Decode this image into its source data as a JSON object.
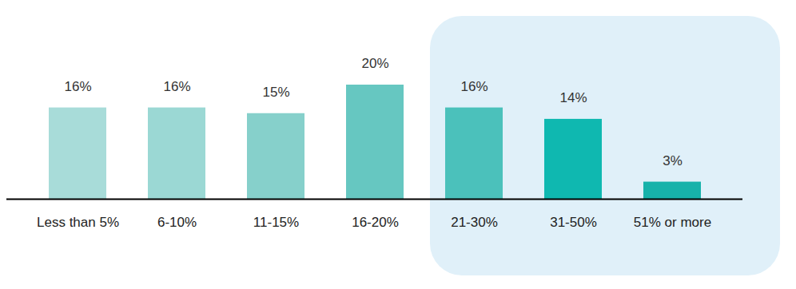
{
  "chart_data": {
    "type": "bar",
    "categories": [
      "Less than 5%",
      "6-10%",
      "11-15%",
      "16-20%",
      "21-30%",
      "31-50%",
      "51% or more"
    ],
    "values": [
      16,
      16,
      15,
      20,
      16,
      14,
      3
    ],
    "value_labels": [
      "16%",
      "16%",
      "15%",
      "20%",
      "16%",
      "14%",
      "3%"
    ],
    "colors": [
      "#a8dcd9",
      "#9bd8d4",
      "#86d0cb",
      "#66c7c1",
      "#4bc1bb",
      "#0fb8b0",
      "#17b2aa"
    ],
    "ylim": [
      0,
      20
    ],
    "data_labels": true,
    "tick_labels": "x"
  }
}
